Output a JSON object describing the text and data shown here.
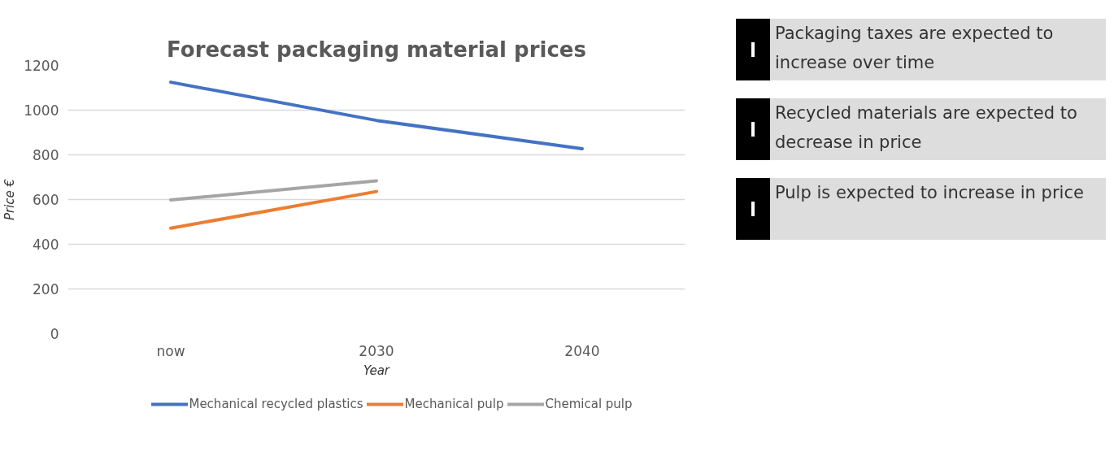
{
  "chart_data": {
    "type": "line",
    "title": "Forecast packaging material prices",
    "xlabel": "Year",
    "ylabel": "Price €",
    "categories": [
      "now",
      "2030",
      "2040"
    ],
    "series": [
      {
        "name": "Mechanical recycled plastics",
        "color": "#4472c4",
        "values": [
          1125,
          954,
          827
        ]
      },
      {
        "name": "Mechanical pulp",
        "color": "#ed7d31",
        "values": [
          472,
          636,
          null
        ]
      },
      {
        "name": "Chemical pulp",
        "color": "#a5a5a5",
        "values": [
          598,
          684,
          null
        ]
      }
    ],
    "ylim": [
      0,
      1200
    ],
    "yticks": [
      0,
      200,
      400,
      600,
      800,
      1000,
      1200
    ],
    "grid": "y",
    "legend": "bottom",
    "marker": "none",
    "line_style": "solid",
    "annotations": [
      "Packaging taxes are expected to increase over time",
      "Recycled materials are expected to decrease in price",
      "Pulp is expected to increase in price"
    ]
  }
}
